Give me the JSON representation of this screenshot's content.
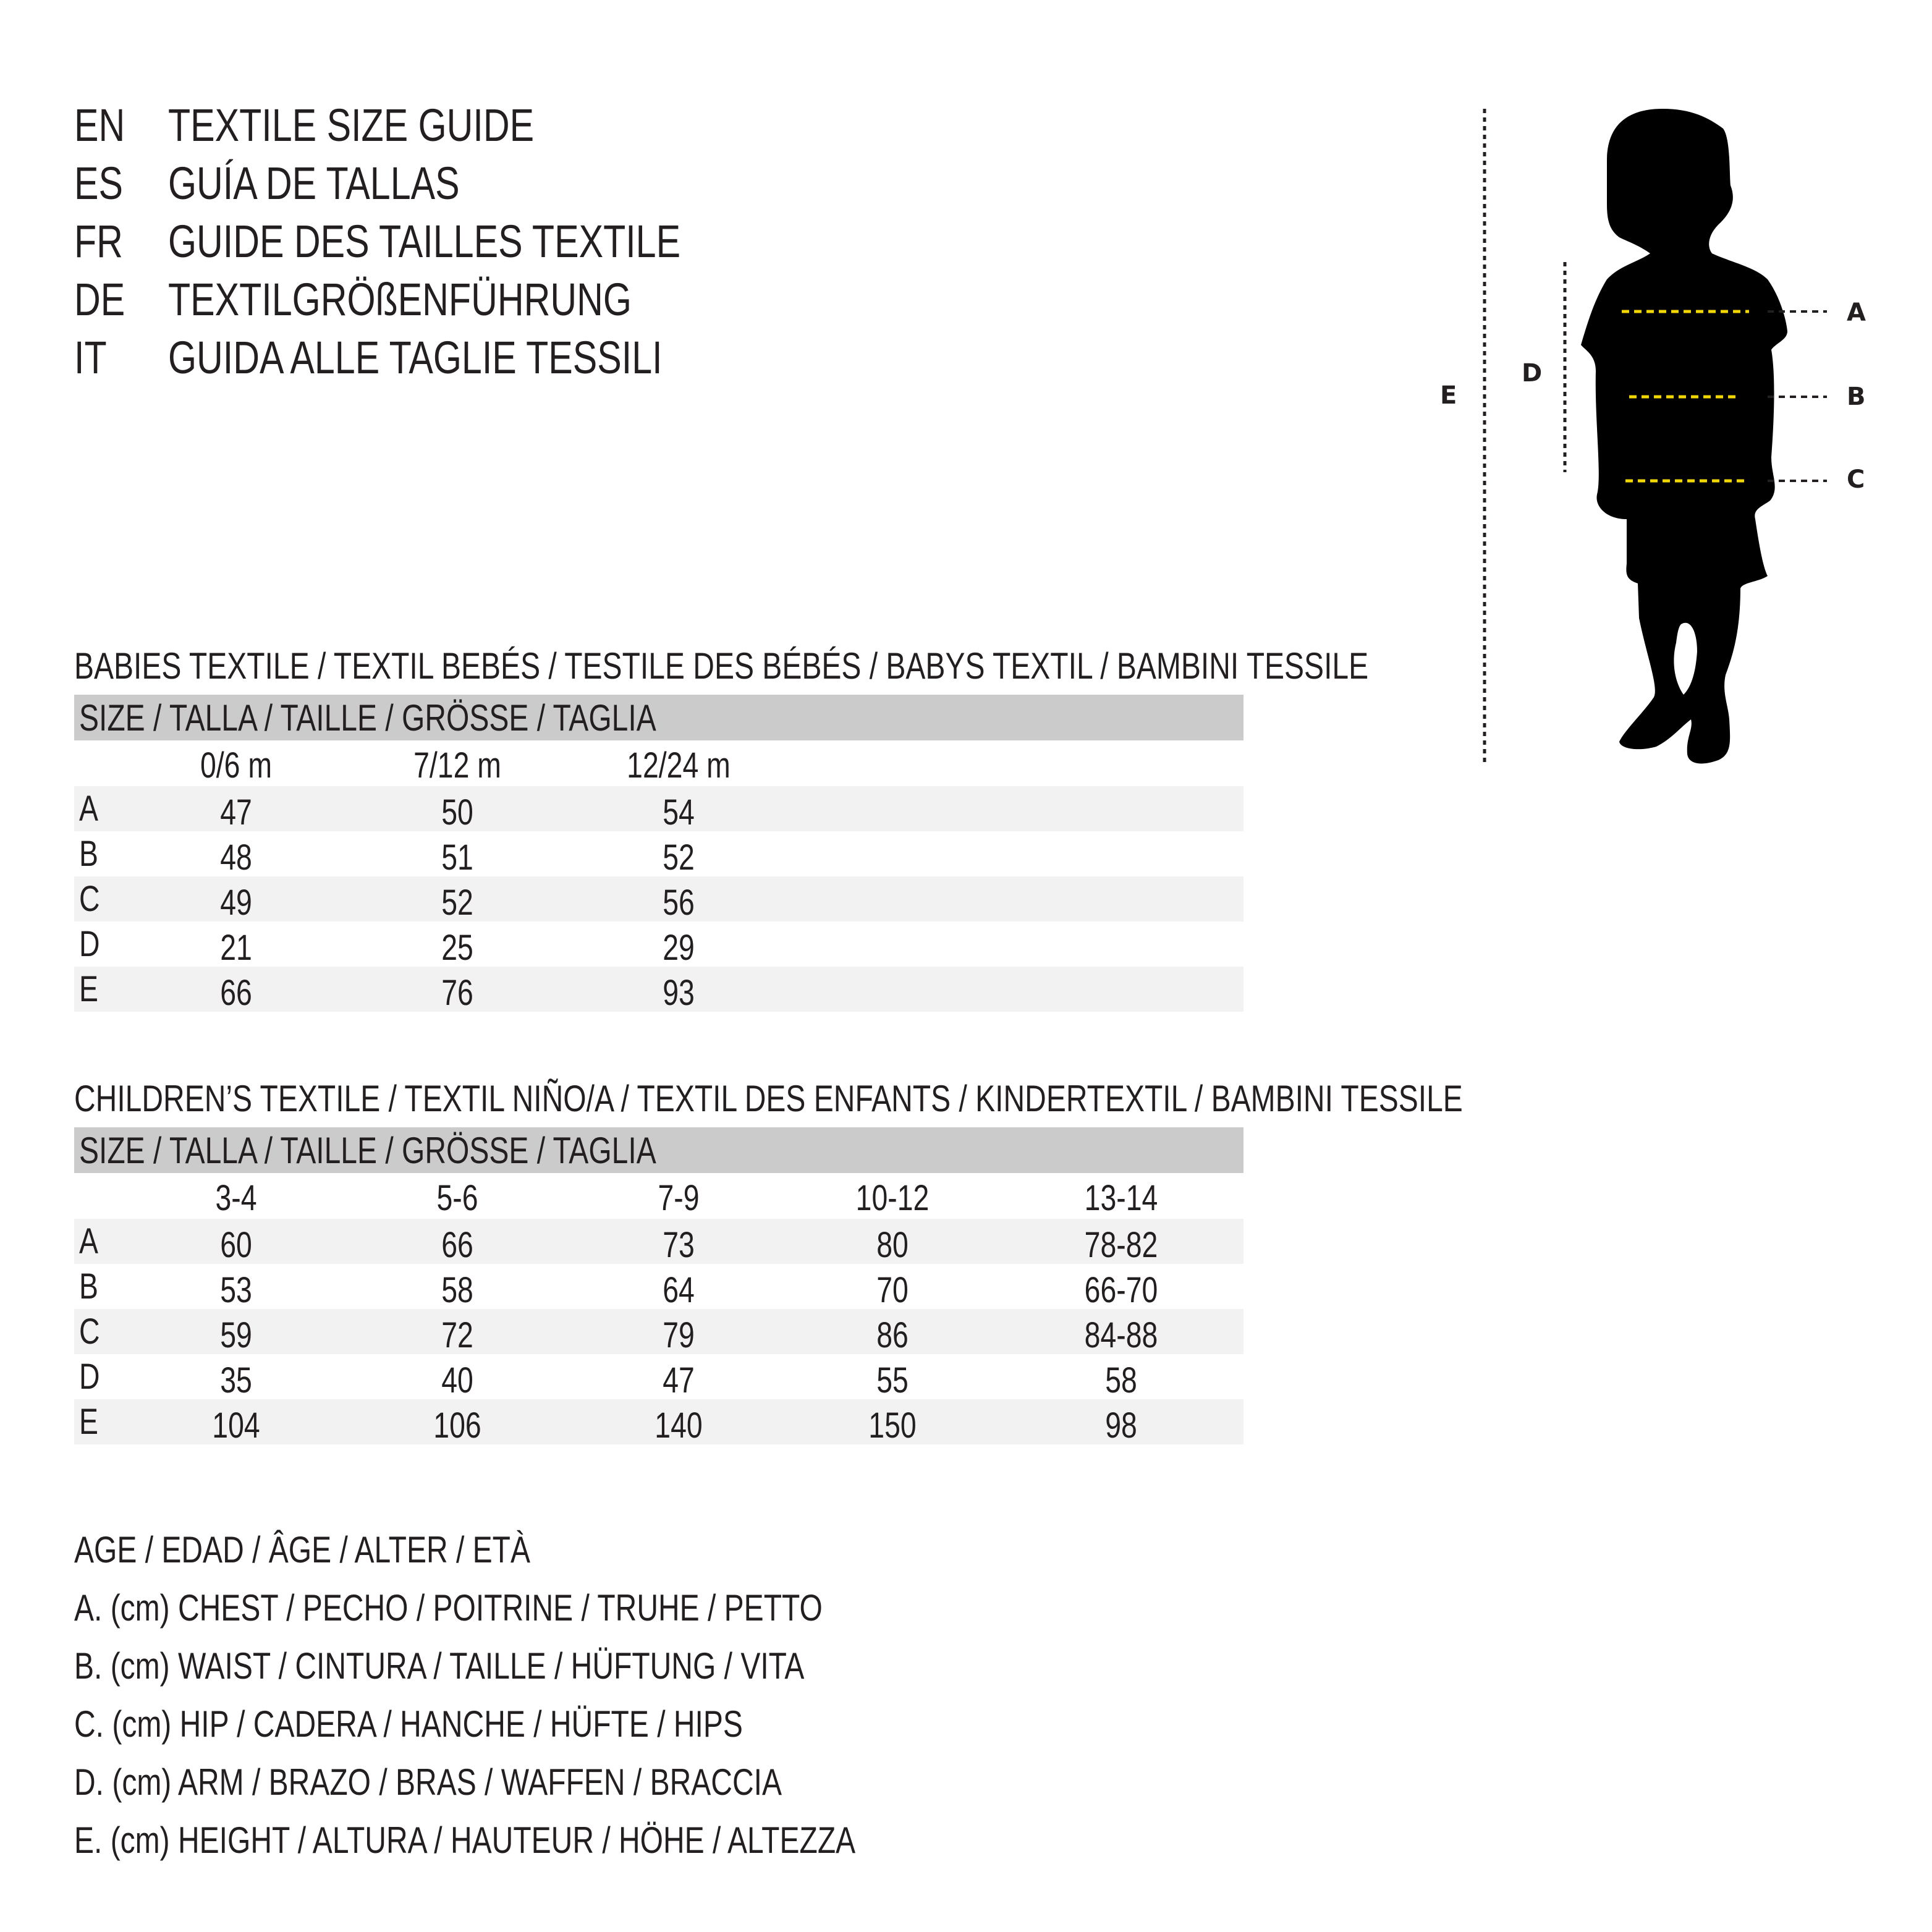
{
  "header": {
    "lines": [
      {
        "code": "EN",
        "text": "TEXTILE SIZE GUIDE"
      },
      {
        "code": "ES",
        "text": "GUÍA DE TALLAS"
      },
      {
        "code": "FR",
        "text": "GUIDE DES TAILLES TEXTILE"
      },
      {
        "code": "DE",
        "text": "TEXTILGRÖßENFÜHRUNG"
      },
      {
        "code": "IT",
        "text": "GUIDA ALLE TAGLIE TESSILI"
      }
    ]
  },
  "figure": {
    "labels": {
      "A": "A",
      "B": "B",
      "C": "C",
      "D": "D",
      "E": "E"
    },
    "colors": {
      "measure_line": "#f2d600",
      "silhouette": "#000000"
    }
  },
  "babies": {
    "title": "BABIES TEXTILE / TEXTIL BEBÉS / TESTILE DES BÉBÉS / BABYS TEXTIL / BAMBINI TESSILE",
    "size_header": "SIZE / TALLA / TAILLE / GRÖSSE / TAGLIA",
    "columns": [
      "0/6 m",
      "7/12 m",
      "12/24 m"
    ],
    "rows": [
      {
        "label": "A",
        "values": [
          "47",
          "50",
          "54"
        ]
      },
      {
        "label": "B",
        "values": [
          "48",
          "51",
          "52"
        ]
      },
      {
        "label": "C",
        "values": [
          "49",
          "52",
          "56"
        ]
      },
      {
        "label": "D",
        "values": [
          "21",
          "25",
          "29"
        ]
      },
      {
        "label": "E",
        "values": [
          "66",
          "76",
          "93"
        ]
      }
    ]
  },
  "children": {
    "title": "CHILDREN’S TEXTILE / TEXTIL NIÑO/A / TEXTIL DES ENFANTS / KINDERTEXTIL / BAMBINI TESSILE",
    "size_header": "SIZE / TALLA / TAILLE / GRÖSSE / TAGLIA",
    "columns": [
      "3-4",
      "5-6",
      "7-9",
      "10-12",
      "13-14"
    ],
    "rows": [
      {
        "label": "A",
        "values": [
          "60",
          "66",
          "73",
          "80",
          "78-82"
        ]
      },
      {
        "label": "B",
        "values": [
          "53",
          "58",
          "64",
          "70",
          "66-70"
        ]
      },
      {
        "label": "C",
        "values": [
          "59",
          "72",
          "79",
          "86",
          "84-88"
        ]
      },
      {
        "label": "D",
        "values": [
          "35",
          "40",
          "47",
          "55",
          "58"
        ]
      },
      {
        "label": "E",
        "values": [
          "104",
          "106",
          "140",
          "150",
          "98"
        ]
      }
    ]
  },
  "legend": [
    "AGE / EDAD / ÂGE / ALTER / ETÀ",
    "A. (cm) CHEST / PECHO / POITRINE / TRUHE / PETTO",
    "B. (cm) WAIST / CINTURA / TAILLE / HÜFTUNG / VITA",
    "C. (cm) HIP / CADERA / HANCHE / HÜFTE / HIPS",
    "D. (cm) ARM / BRAZO / BRAS / WAFFEN / BRACCIA",
    "E. (cm) HEIGHT / ALTURA / HAUTEUR / HÖHE / ALTEZZA"
  ]
}
